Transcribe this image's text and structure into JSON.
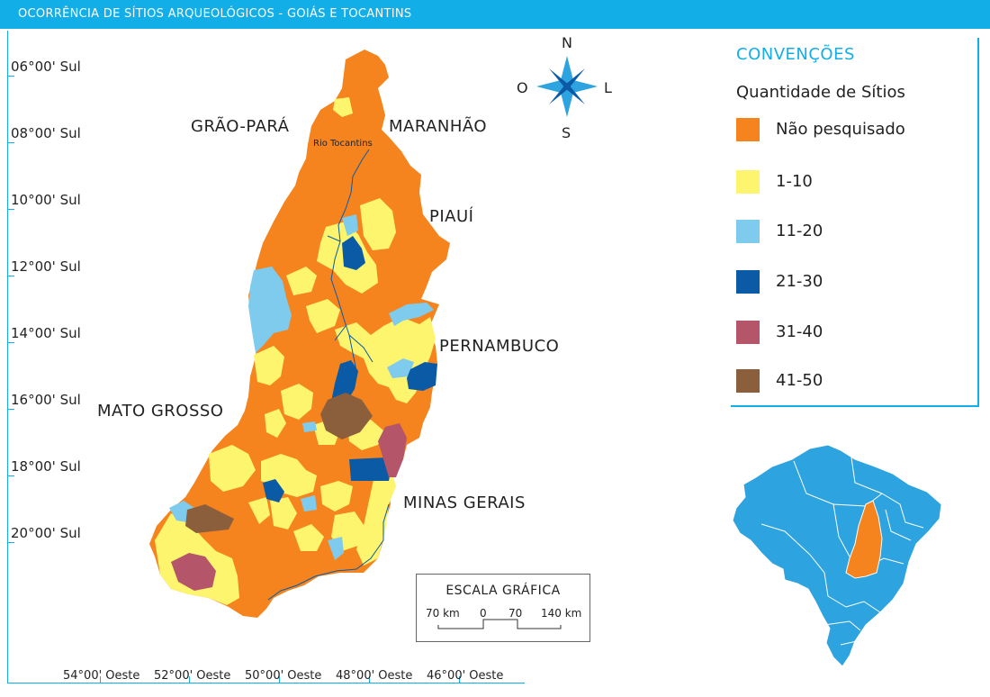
{
  "title": "OCORRÊNCIA DE SÍTIOS ARQUEOLÓGICOS - GOIÁS E TOCANTINS",
  "latitudes": [
    "06°00' Sul",
    "08°00' Sul",
    "10°00' Sul",
    "12°00' Sul",
    "14°00' Sul",
    "16°00' Sul",
    "18°00' Sul",
    "20°00' Sul"
  ],
  "longitudes": [
    "54°00' Oeste",
    "52°00' Oeste",
    "50°00' Oeste",
    "48°00' Oeste",
    "46°00' Oeste"
  ],
  "regions": {
    "grao_para": "GRÃO-PARÁ",
    "maranhao": "MARANHÃO",
    "piaui": "PIAUÍ",
    "pernambuco": "PERNAMBUCO",
    "mato_grosso": "MATO GROSSO",
    "minas_gerais": "MINAS GERAIS"
  },
  "river_label": "Rio Tocantins",
  "compass": {
    "n": "N",
    "s": "S",
    "l": "L",
    "o": "O"
  },
  "legend": {
    "title": "CONVENÇÕES",
    "subtitle": "Quantidade de Sítios",
    "items": [
      {
        "label": "Não pesquisado",
        "color": "#f5841f"
      },
      {
        "label": "1-10",
        "color": "#fdf56e"
      },
      {
        "label": "11-20",
        "color": "#7ecbee"
      },
      {
        "label": "21-30",
        "color": "#0a5aa6"
      },
      {
        "label": "31-40",
        "color": "#b5556a"
      },
      {
        "label": "41-50",
        "color": "#8b5e3c"
      }
    ]
  },
  "scale": {
    "title": "ESCALA GRÁFICA",
    "labels": [
      "70 km",
      "0",
      "70",
      "140 km"
    ]
  },
  "colors": {
    "accent": "#12aee8",
    "inset_brazil": "#2da3e0",
    "inset_highlight": "#f5841f"
  }
}
